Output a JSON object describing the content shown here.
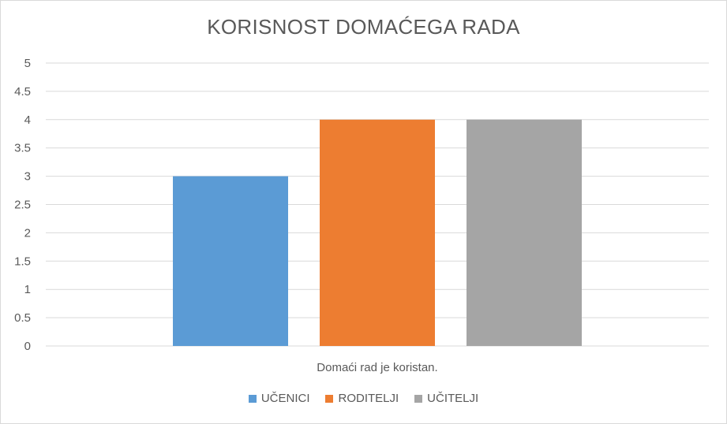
{
  "chart_data": {
    "type": "bar",
    "title": "KORISNOST DOMAĆEGA RADA",
    "categories": [
      "Domaći rad je koristan."
    ],
    "series": [
      {
        "name": "UČENICI",
        "values": [
          3
        ],
        "color": "#5B9BD5"
      },
      {
        "name": "RODITELJI",
        "values": [
          4
        ],
        "color": "#ED7D31"
      },
      {
        "name": "UČITELJI",
        "values": [
          4
        ],
        "color": "#A5A5A5"
      }
    ],
    "xlabel": "",
    "ylabel": "",
    "ylim": [
      0,
      5
    ],
    "yticks": [
      "0",
      "0.5",
      "1",
      "1.5",
      "2",
      "2.5",
      "3",
      "3.5",
      "4",
      "4.5",
      "5"
    ],
    "grid": true,
    "legend_position": "bottom"
  }
}
